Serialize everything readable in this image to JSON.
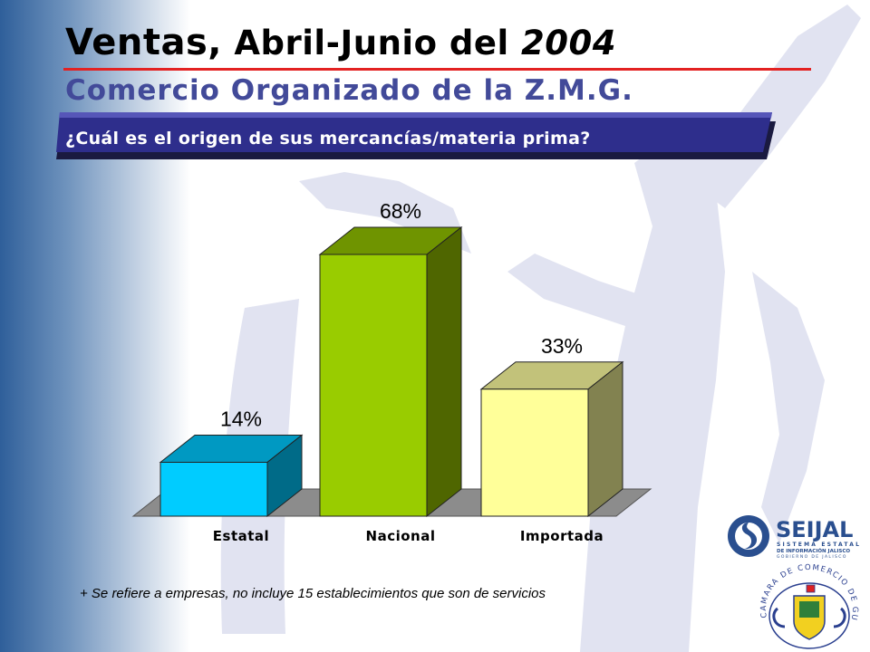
{
  "header": {
    "title_word": "Ventas,",
    "title_rest": " Abril-Junio del ",
    "title_year": "2004",
    "subtitle": "Comercio Organizado de la Z.M.G.",
    "question": "¿Cuál es el origen de sus mercancías/materia prima?"
  },
  "chart_data": {
    "type": "bar",
    "categories": [
      "Estatal",
      "Nacional",
      "Importada"
    ],
    "values": [
      14,
      68,
      33
    ],
    "value_labels": [
      "14%",
      "68%",
      "33%"
    ],
    "unit": "%",
    "colors": {
      "front": [
        "#00ccff",
        "#99cc00",
        "#ffff99"
      ],
      "side": [
        "#006b88",
        "#4f6600",
        "#828250"
      ],
      "top": [
        "#0099c2",
        "#6f9400",
        "#c2c27a"
      ],
      "floor": "#8c8c8c"
    },
    "grid": false,
    "legend": "none"
  },
  "footnote": "+ Se refiere a empresas, no incluye 15 establecimientos que son de servicios",
  "logos": {
    "seijal_name": "SEIJAL",
    "seijal_line1": "SISTEMA ESTATAL",
    "seijal_line2": "DE INFORMACIÓN JALISCO",
    "seijal_line3": "GOBIERNO DE JALISCO",
    "camara_text": "CAMARA DE COMERCIO DE GUADALAJARA"
  }
}
